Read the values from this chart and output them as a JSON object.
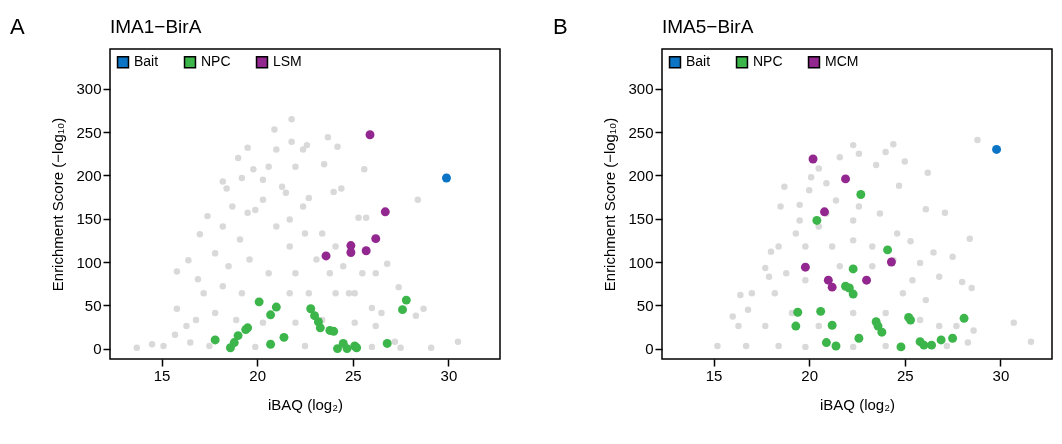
{
  "chart_data": [
    {
      "type": "scatter",
      "title": "IMA1−BirA",
      "xlabel": "iBAQ (log₂)",
      "ylabel": "Enrichment Score (−log₁₀)",
      "annotations": [
        "A"
      ],
      "xlim": [
        12.3,
        32.7
      ],
      "ylim": [
        -12,
        346
      ],
      "xticks": [
        15,
        20,
        25,
        30
      ],
      "yticks": [
        0,
        50,
        100,
        150,
        200,
        250,
        300
      ],
      "legend": "top left",
      "marker": "circle",
      "series": [
        {
          "color": "#d9d9d9",
          "x": [
            13.7,
            14.5,
            15.7,
            15.8,
            16.3,
            16.4,
            15.8,
            16.9,
            17.0,
            17.4,
            18.2,
            18.4,
            19.0,
            19.5,
            19.2,
            19.8,
            20.3,
            20.6,
            20.9,
            21.8,
            21.8,
            21.0,
            21.5,
            22.0,
            22.6,
            22.4,
            23.7,
            24.2,
            23.5,
            22.7,
            24.4,
            24.0,
            25.6,
            25.3,
            25.7,
            28.4,
            26.8,
            27.4,
            28.7,
            28.3,
            29.1,
            30.5,
            26.2,
            25.5,
            25.1,
            26.0,
            26.5,
            27.2,
            27.5,
            18.2,
            19.1,
            19.9,
            21.0,
            21.7,
            22.5,
            23.4,
            24.1,
            17.8,
            18.5,
            19.6,
            20.6,
            22.0,
            23.1,
            23.8,
            24.5,
            17.2,
            18.2,
            19.2,
            21.7,
            22.7,
            24.1,
            24.8,
            16.8,
            17.8,
            18.9,
            20.3,
            22.0,
            23.4,
            25.1,
            26.2,
            15.1,
            16.5,
            17.5,
            19.9,
            22.5,
            26.0,
            21.7,
            21.3,
            22.4,
            20.3,
            19.5,
            18.7
          ],
          "values": [
            1,
            5,
            16,
            46,
            26,
            102,
            89,
            80,
            132,
            153,
            193,
            185,
            220,
            232,
            197,
            207,
            195,
            210,
            253,
            265,
            239,
            230,
            180,
            210,
            235,
            230,
            244,
            233,
            213,
            174,
            185,
            181,
            207,
            151,
            151,
            172,
            98,
            71,
            46,
            38,
            1,
            8,
            87,
            87,
            64,
            47,
            41,
            8,
            1,
            141,
            126,
            160,
            141,
            118,
            133,
            133,
            118,
            110,
            95,
            103,
            87,
            87,
            103,
            87,
            95,
            64,
            72,
            64,
            64,
            64,
            64,
            64,
            33,
            41,
            33,
            30,
            30,
            33,
            30,
            26,
            3,
            7,
            3,
            2,
            3,
            2,
            149,
            187,
            164,
            172,
            157,
            164
          ]
        },
        {
          "name": "Bait",
          "color": "#0b74c4",
          "x": [
            29.9
          ],
          "values": [
            197
          ]
        },
        {
          "name": "NPC",
          "color": "#3cb54a",
          "x": [
            20.1,
            21.0,
            20.7,
            19.5,
            19.4,
            19.0,
            18.8,
            18.6,
            17.8,
            20.7,
            21.4,
            22.8,
            23.0,
            23.2,
            23.3,
            23.8,
            24.0,
            24.2,
            24.5,
            24.7,
            25.1,
            25.2,
            26.8,
            27.8,
            27.6
          ],
          "values": [
            54,
            48,
            39,
            24,
            22,
            15,
            7,
            1,
            10,
            5,
            13,
            46,
            38,
            31,
            24,
            21,
            20,
            0,
            6,
            0,
            3,
            1,
            6,
            56,
            45
          ]
        },
        {
          "name": "LSM",
          "color": "#92278f",
          "x": [
            25.9,
            26.7,
            26.2,
            24.9,
            24.9,
            25.7,
            23.6
          ],
          "values": [
            247,
            158,
            127,
            119,
            111,
            113,
            107
          ]
        }
      ]
    },
    {
      "type": "scatter",
      "title": "IMA5−BirA",
      "xlabel": "iBAQ (log₂)",
      "ylabel": "Enrichment Score (−log₁₀)",
      "annotations": [
        "B"
      ],
      "xlim": [
        12.3,
        32.7
      ],
      "ylim": [
        -12,
        346
      ],
      "xticks": [
        15,
        20,
        25,
        30
      ],
      "yticks": [
        0,
        50,
        100,
        150,
        200,
        250,
        300
      ],
      "legend": "top left",
      "marker": "circle",
      "series": [
        {
          "color": "#d9d9d9",
          "x": [
            15.2,
            16.0,
            16.4,
            16.8,
            18.0,
            17.7,
            18.5,
            18.7,
            19.5,
            20.0,
            20.1,
            20.5,
            20.9,
            21.6,
            22.3,
            22.6,
            23.5,
            24.0,
            24.4,
            25.0,
            24.7,
            26.2,
            26.1,
            27.1,
            28.4,
            27.5,
            26.5,
            28.0,
            28.5,
            28.8,
            30.7,
            31.6,
            28.6,
            28.3,
            26.8,
            25.8,
            25.3,
            24.6,
            23.7,
            22.6,
            21.4,
            20.5,
            19.3,
            18.4,
            17.9,
            18.8,
            19.8,
            21.2,
            22.3,
            23.3,
            24.4,
            25.4,
            17.0,
            18.2,
            19.8,
            21.6,
            23.3,
            24.9,
            26.1,
            16.3,
            17.7,
            19.1,
            20.5,
            22.3,
            24.0,
            25.8,
            26.8,
            16.7,
            18.4,
            19.8,
            22.3,
            24.0,
            27.2,
            27.7,
            19.5,
            20.9,
            22.3
          ],
          "values": [
            3,
            37,
            62,
            45,
            112,
            93,
            164,
            187,
            166,
            183,
            198,
            208,
            191,
            221,
            235,
            225,
            212,
            227,
            236,
            216,
            188,
            203,
            161,
            157,
            127,
            106,
            111,
            77,
            70,
            241,
            30,
            8,
            21,
            7,
            83,
            99,
            124,
            133,
            156,
            164,
            171,
            141,
            133,
            118,
            83,
            87,
            118,
            118,
            125,
            118,
            102,
            79,
            64,
            64,
            79,
            95,
            95,
            64,
            56,
            26,
            26,
            41,
            26,
            41,
            41,
            33,
            26,
            3,
            3,
            2,
            2,
            3,
            3,
            26,
            148,
            156,
            148
          ]
        },
        {
          "name": "Bait",
          "color": "#0b74c4",
          "x": [
            29.8
          ],
          "values": [
            230
          ]
        },
        {
          "name": "NPC",
          "color": "#3cb54a",
          "x": [
            22.7,
            20.4,
            24.1,
            22.3,
            21.9,
            22.1,
            22.3,
            19.4,
            20.6,
            19.3,
            21.2,
            20.9,
            21.4,
            22.6,
            23.5,
            23.6,
            23.8,
            25.2,
            25.3,
            24.8,
            25.8,
            26.0,
            26.4,
            26.9,
            27.5,
            28.1
          ],
          "values": [
            178,
            148,
            114,
            92,
            72,
            70,
            63,
            42,
            43,
            26,
            27,
            7,
            3,
            12,
            31,
            26,
            19,
            36,
            33,
            2,
            8,
            4,
            4,
            10,
            12,
            35
          ]
        },
        {
          "name": "MCM",
          "color": "#92278f",
          "x": [
            20.2,
            21.9,
            20.8,
            19.8,
            21.0,
            21.2,
            23.0,
            24.3
          ],
          "values": [
            219,
            196,
            158,
            94,
            79,
            71,
            79,
            100
          ]
        }
      ]
    }
  ]
}
